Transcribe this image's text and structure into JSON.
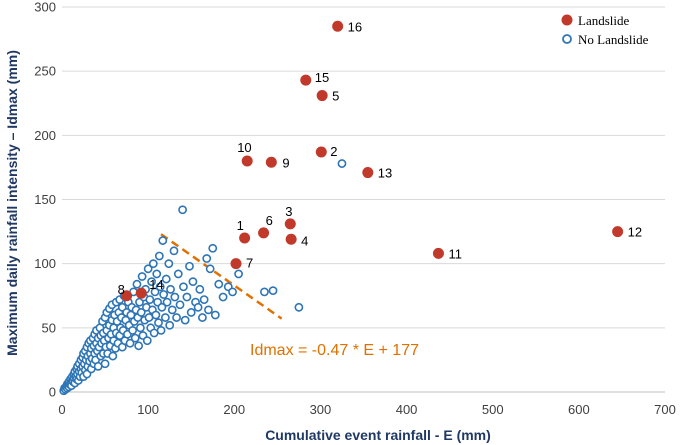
{
  "chart_data": {
    "type": "scatter",
    "xlabel": "Cumulative event rainfall - E (mm)",
    "ylabel": "Maximum daily rainfall intensity – Idmax (mm)",
    "xlim": [
      0,
      700
    ],
    "ylim": [
      0,
      300
    ],
    "xticks": [
      0,
      100,
      200,
      300,
      400,
      500,
      600,
      700
    ],
    "yticks": [
      0,
      50,
      100,
      150,
      200,
      250,
      300
    ],
    "grid": "horizontal",
    "legend_position": "top-right",
    "colors": {
      "landslide": "#c0392b",
      "no_landslide": "#2e75b6",
      "threshold": "#e07000",
      "axis_title": "#1f3864"
    },
    "series": [
      {
        "name": "Landslide",
        "marker": "filled-circle",
        "points": [
          {
            "id": "1",
            "x": 212,
            "y": 120
          },
          {
            "id": "2",
            "x": 301,
            "y": 187
          },
          {
            "id": "3",
            "x": 265,
            "y": 131
          },
          {
            "id": "4",
            "x": 266,
            "y": 119
          },
          {
            "id": "5",
            "x": 302,
            "y": 231
          },
          {
            "id": "6",
            "x": 234,
            "y": 124
          },
          {
            "id": "7",
            "x": 202,
            "y": 100
          },
          {
            "id": "8",
            "x": 75,
            "y": 75
          },
          {
            "id": "9",
            "x": 243,
            "y": 179
          },
          {
            "id": "10",
            "x": 215,
            "y": 180
          },
          {
            "id": "11",
            "x": 437,
            "y": 108
          },
          {
            "id": "12",
            "x": 645,
            "y": 125
          },
          {
            "id": "13",
            "x": 355,
            "y": 171
          },
          {
            "id": "14",
            "x": 92,
            "y": 77
          },
          {
            "id": "15",
            "x": 283,
            "y": 243
          },
          {
            "id": "16",
            "x": 320,
            "y": 285
          }
        ]
      },
      {
        "name": "No Landslide",
        "marker": "open-circle",
        "points": [
          [
            2,
            1
          ],
          [
            3,
            3
          ],
          [
            4,
            2
          ],
          [
            5,
            4
          ],
          [
            6,
            3
          ],
          [
            6,
            6
          ],
          [
            7,
            5
          ],
          [
            8,
            4
          ],
          [
            8,
            8
          ],
          [
            9,
            6
          ],
          [
            10,
            7
          ],
          [
            10,
            10
          ],
          [
            11,
            5
          ],
          [
            12,
            9
          ],
          [
            12,
            12
          ],
          [
            13,
            8
          ],
          [
            14,
            11
          ],
          [
            14,
            14
          ],
          [
            15,
            7
          ],
          [
            15,
            16
          ],
          [
            16,
            12
          ],
          [
            17,
            10
          ],
          [
            17,
            18
          ],
          [
            18,
            14
          ],
          [
            18,
            20
          ],
          [
            19,
            9
          ],
          [
            20,
            16
          ],
          [
            20,
            22
          ],
          [
            21,
            12
          ],
          [
            22,
            18
          ],
          [
            22,
            25
          ],
          [
            23,
            15
          ],
          [
            24,
            20
          ],
          [
            24,
            27
          ],
          [
            25,
            12
          ],
          [
            25,
            30
          ],
          [
            26,
            22
          ],
          [
            27,
            17
          ],
          [
            27,
            32
          ],
          [
            28,
            25
          ],
          [
            29,
            14
          ],
          [
            29,
            35
          ],
          [
            30,
            20
          ],
          [
            30,
            28
          ],
          [
            31,
            38
          ],
          [
            32,
            24
          ],
          [
            33,
            30
          ],
          [
            33,
            40
          ],
          [
            34,
            18
          ],
          [
            34,
            34
          ],
          [
            35,
            26
          ],
          [
            36,
            42
          ],
          [
            37,
            22
          ],
          [
            37,
            36
          ],
          [
            38,
            30
          ],
          [
            38,
            45
          ],
          [
            39,
            25
          ],
          [
            40,
            38
          ],
          [
            40,
            48
          ],
          [
            41,
            32
          ],
          [
            42,
            20
          ],
          [
            42,
            42
          ],
          [
            43,
            35
          ],
          [
            44,
            50
          ],
          [
            45,
            28
          ],
          [
            45,
            44
          ],
          [
            46,
            38
          ],
          [
            47,
            55
          ],
          [
            48,
            30
          ],
          [
            48,
            46
          ],
          [
            49,
            40
          ],
          [
            50,
            58
          ],
          [
            50,
            22
          ],
          [
            51,
            35
          ],
          [
            52,
            48
          ],
          [
            52,
            62
          ],
          [
            53,
            30
          ],
          [
            54,
            42
          ],
          [
            55,
            52
          ],
          [
            55,
            65
          ],
          [
            56,
            36
          ],
          [
            57,
            45
          ],
          [
            58,
            56
          ],
          [
            58,
            68
          ],
          [
            59,
            28
          ],
          [
            60,
            40
          ],
          [
            60,
            50
          ],
          [
            61,
            60
          ],
          [
            62,
            34
          ],
          [
            63,
            46
          ],
          [
            63,
            70
          ],
          [
            64,
            55
          ],
          [
            65,
            38
          ],
          [
            66,
            62
          ],
          [
            67,
            44
          ],
          [
            67,
            72
          ],
          [
            68,
            50
          ],
          [
            69,
            58
          ],
          [
            70,
            35
          ],
          [
            70,
            66
          ],
          [
            71,
            48
          ],
          [
            72,
            75
          ],
          [
            73,
            40
          ],
          [
            74,
            56
          ],
          [
            75,
            62
          ],
          [
            76,
            45
          ],
          [
            77,
            70
          ],
          [
            78,
            52
          ],
          [
            79,
            38
          ],
          [
            80,
            60
          ],
          [
            81,
            66
          ],
          [
            82,
            48
          ],
          [
            83,
            78
          ],
          [
            84,
            55
          ],
          [
            85,
            42
          ],
          [
            86,
            64
          ],
          [
            87,
            84
          ],
          [
            88,
            58
          ],
          [
            89,
            36
          ],
          [
            90,
            70
          ],
          [
            91,
            50
          ],
          [
            92,
            62
          ],
          [
            93,
            90
          ],
          [
            94,
            44
          ],
          [
            95,
            74
          ],
          [
            96,
            56
          ],
          [
            97,
            80
          ],
          [
            98,
            66
          ],
          [
            99,
            40
          ],
          [
            100,
            96
          ],
          [
            101,
            58
          ],
          [
            102,
            72
          ],
          [
            103,
            50
          ],
          [
            104,
            86
          ],
          [
            105,
            64
          ],
          [
            106,
            100
          ],
          [
            107,
            46
          ],
          [
            108,
            78
          ],
          [
            109,
            60
          ],
          [
            110,
            92
          ],
          [
            111,
            70
          ],
          [
            112,
            54
          ],
          [
            113,
            106
          ],
          [
            114,
            82
          ],
          [
            115,
            48
          ],
          [
            116,
            66
          ],
          [
            117,
            118
          ],
          [
            118,
            76
          ],
          [
            120,
            58
          ],
          [
            121,
            88
          ],
          [
            122,
            70
          ],
          [
            124,
            100
          ],
          [
            125,
            52
          ],
          [
            126,
            80
          ],
          [
            128,
            64
          ],
          [
            130,
            110
          ],
          [
            131,
            74
          ],
          [
            133,
            58
          ],
          [
            135,
            92
          ],
          [
            137,
            68
          ],
          [
            140,
            142
          ],
          [
            141,
            82
          ],
          [
            143,
            56
          ],
          [
            145,
            74
          ],
          [
            148,
            98
          ],
          [
            150,
            62
          ],
          [
            152,
            86
          ],
          [
            155,
            70
          ],
          [
            158,
            66
          ],
          [
            160,
            80
          ],
          [
            163,
            58
          ],
          [
            165,
            72
          ],
          [
            168,
            104
          ],
          [
            170,
            64
          ],
          [
            172,
            96
          ],
          [
            175,
            112
          ],
          [
            178,
            60
          ],
          [
            182,
            84
          ],
          [
            187,
            74
          ],
          [
            193,
            82
          ],
          [
            198,
            78
          ],
          [
            205,
            92
          ],
          [
            235,
            78
          ],
          [
            245,
            79
          ],
          [
            275,
            66
          ],
          [
            325,
            178
          ]
        ]
      }
    ],
    "threshold_line": {
      "equation": "Idmax = -0.47 * E + 177",
      "slope": -0.47,
      "intercept": 177,
      "x_range": [
        115,
        255
      ]
    }
  }
}
